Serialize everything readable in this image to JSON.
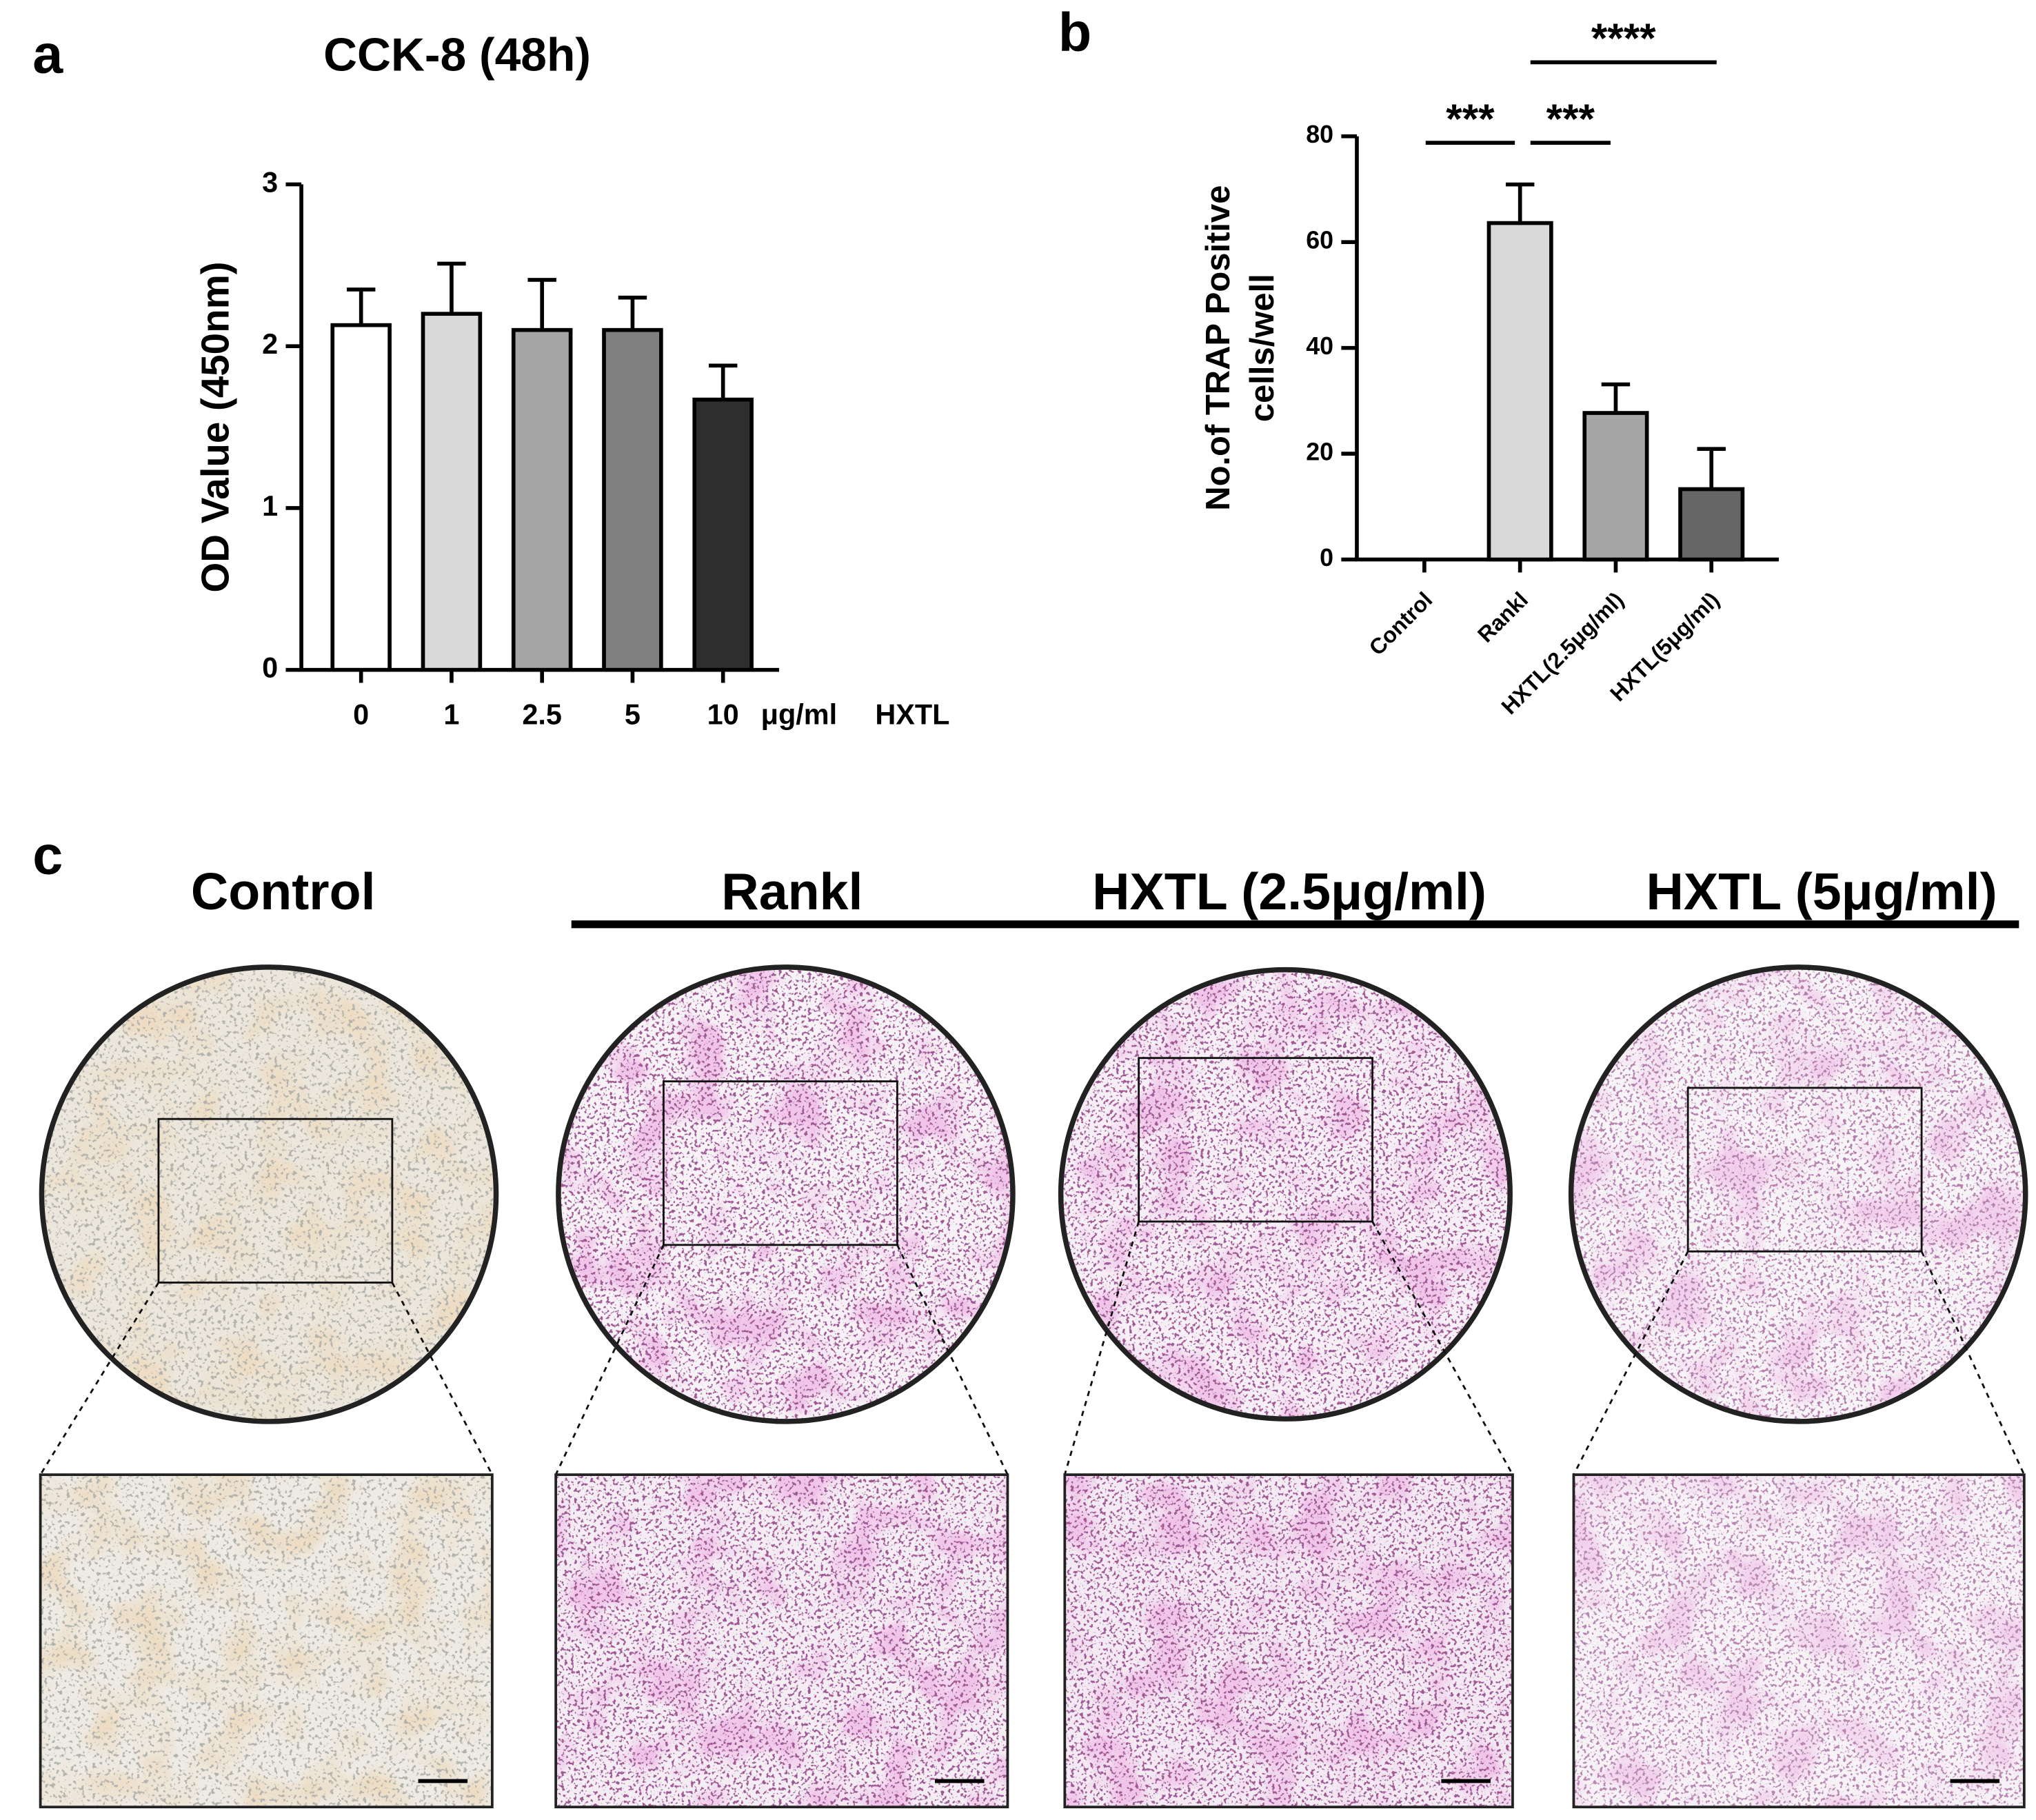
{
  "panel_labels": [
    "a",
    "b",
    "c"
  ],
  "chart_data": [
    {
      "type": "bar",
      "title": "CCK-8 (48h)",
      "y_label": "OD Value (450nm)",
      "categories": [
        "0",
        "1",
        "2.5",
        "5",
        "10"
      ],
      "x_unit": "μg/ml",
      "x_label": "HXTL",
      "values": [
        2.13,
        2.2,
        2.1,
        2.1,
        1.67
      ],
      "errors": [
        0.22,
        0.31,
        0.31,
        0.2,
        0.21
      ],
      "colors": [
        "#ffffff",
        "#d9d9d9",
        "#a6a6a6",
        "#808080",
        "#2e2e2e"
      ],
      "ylim": [
        0,
        3
      ],
      "yticks": [
        0,
        1,
        2,
        3
      ]
    },
    {
      "type": "bar",
      "y_label": [
        "No.of TRAP Positive",
        "cells/well"
      ],
      "categories": [
        "Control",
        "Rankl",
        "HXTL(2.5μg/ml)",
        "HXTL(5μg/ml)"
      ],
      "values": [
        0,
        63.6,
        27.7,
        13.3
      ],
      "errors": [
        0,
        7.3,
        5.4,
        7.6
      ],
      "colors": [
        "#ffffff",
        "#d9d9d9",
        "#a6a6a6",
        "#666666"
      ],
      "ylim": [
        0,
        80
      ],
      "yticks": [
        0,
        20,
        40,
        60,
        80
      ],
      "significance": [
        {
          "pair": [
            0,
            1
          ],
          "label": "***"
        },
        {
          "pair": [
            1,
            2
          ],
          "label": "***"
        },
        {
          "pair": [
            1,
            3
          ],
          "label": "****"
        }
      ]
    }
  ],
  "panel_c": {
    "groups": [
      "Control",
      "Rankl",
      "HXTL (2.5μg/ml)",
      "HXTL (5μg/ml)"
    ]
  }
}
